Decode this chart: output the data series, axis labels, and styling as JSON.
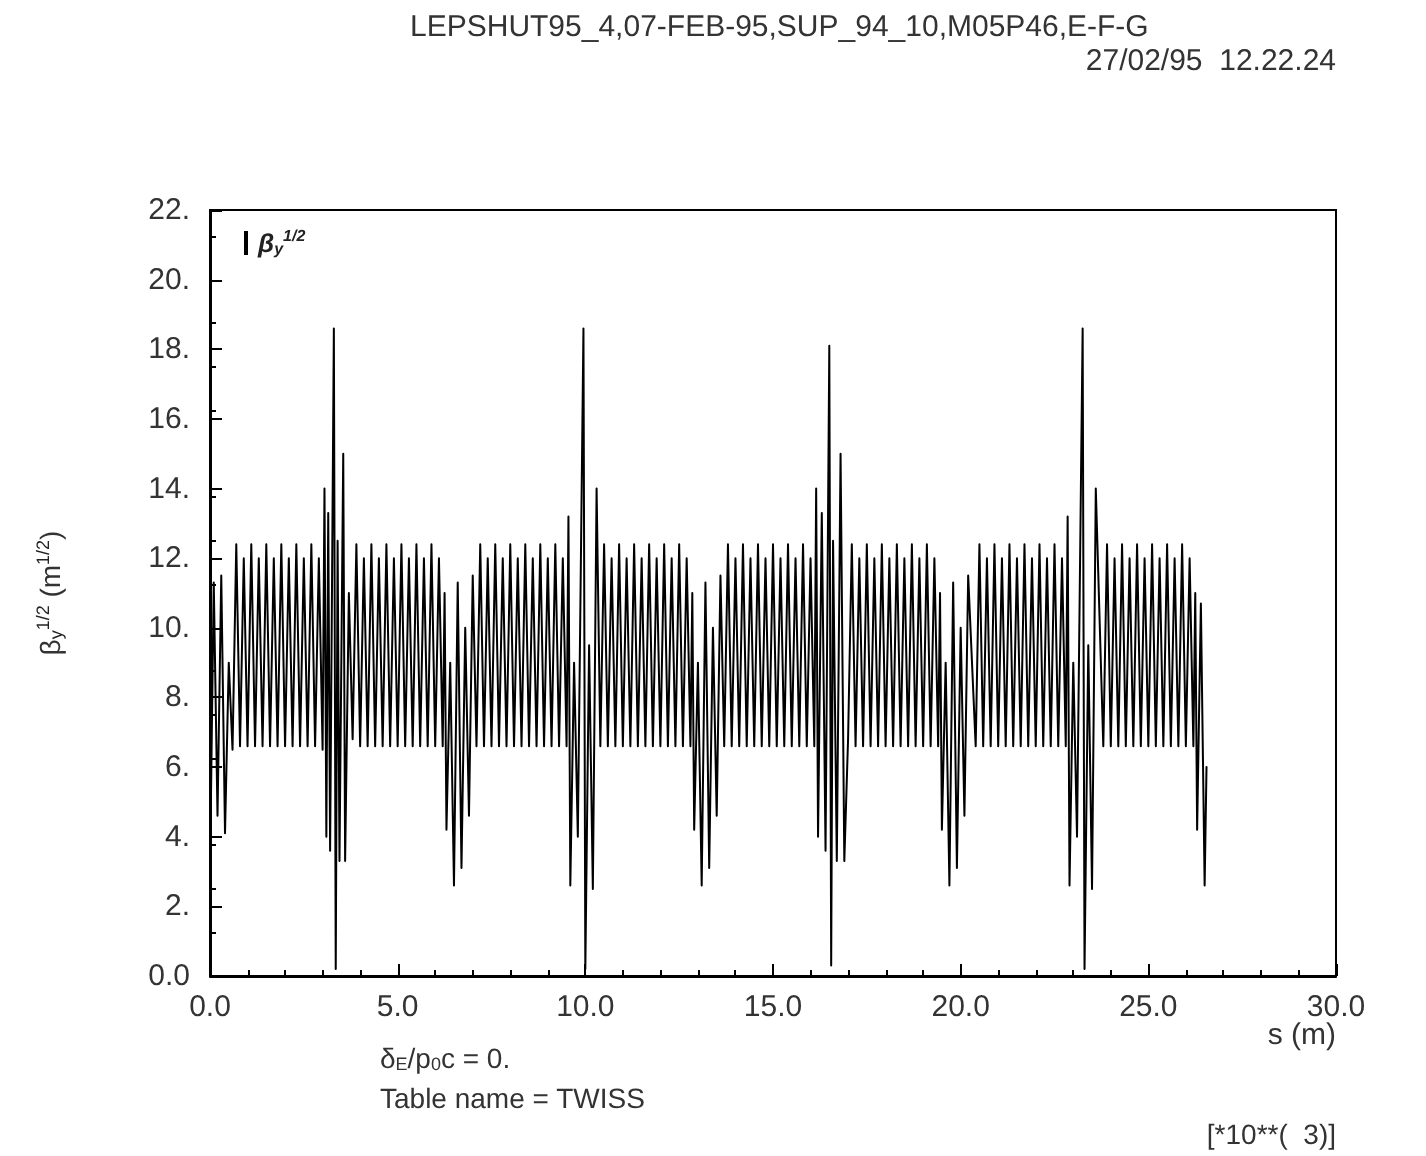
{
  "chart_data": {
    "type": "line",
    "title": "LEPSHUT95_4,07-FEB-95,SUP_94_10,M05P46,E-F-G",
    "subtitle": "27/02/95  12.22.24",
    "xlabel": "s (m)",
    "ylabel": "β$_{y}$$^{1/2}$ (m$^{1/2}$)",
    "annotations": [
      "δ$_{E}$/p$_{0}$c = 0.",
      "Table name = TWISS",
      "[*10**(  3)]"
    ],
    "x": [
      0,
      0.1,
      0.2,
      0.3,
      0.4,
      0.5,
      0.6,
      0.7,
      0.8,
      0.9,
      1.0,
      1.1,
      1.2,
      1.3,
      1.4,
      1.5,
      1.6,
      1.7,
      1.8,
      1.9,
      2.0,
      2.1,
      2.2,
      2.3,
      2.4,
      2.5,
      2.6,
      2.7,
      2.8,
      2.9,
      3.0,
      3.05,
      3.1,
      3.15,
      3.2,
      3.3,
      3.35,
      3.4,
      3.45,
      3.55,
      3.6,
      3.7,
      3.8,
      3.9,
      4.0,
      4.1,
      4.2,
      4.3,
      4.4,
      4.5,
      4.6,
      4.7,
      4.8,
      4.9,
      5.0,
      5.1,
      5.2,
      5.3,
      5.4,
      5.5,
      5.6,
      5.7,
      5.8,
      5.9,
      6.0,
      6.1,
      6.2,
      6.25,
      6.3,
      6.4,
      6.5,
      6.6,
      6.7,
      6.8,
      6.9,
      7.0,
      7.1,
      7.2,
      7.3,
      7.4,
      7.5,
      7.6,
      7.7,
      7.8,
      7.9,
      8.0,
      8.1,
      8.2,
      8.3,
      8.4,
      8.5,
      8.6,
      8.7,
      8.8,
      8.9,
      9.0,
      9.1,
      9.2,
      9.3,
      9.4,
      9.5,
      9.55,
      9.6,
      9.7,
      9.8,
      9.95,
      10.0,
      10.1,
      10.2,
      10.3,
      10.4,
      10.5,
      10.6,
      10.7,
      10.8,
      10.9,
      11.0,
      11.1,
      11.2,
      11.3,
      11.4,
      11.5,
      11.6,
      11.7,
      11.8,
      11.9,
      12.0,
      12.1,
      12.2,
      12.3,
      12.4,
      12.5,
      12.6,
      12.7,
      12.8,
      12.85,
      12.9,
      13.0,
      13.1,
      13.2,
      13.3,
      13.4,
      13.5,
      13.6,
      13.7,
      13.8,
      13.9,
      14.0,
      14.1,
      14.2,
      14.3,
      14.4,
      14.5,
      14.6,
      14.7,
      14.8,
      14.9,
      15.0,
      15.1,
      15.2,
      15.3,
      15.4,
      15.5,
      15.6,
      15.7,
      15.8,
      15.9,
      16.0,
      16.1,
      16.15,
      16.2,
      16.3,
      16.4,
      16.5,
      16.55,
      16.6,
      16.7,
      16.8,
      16.9,
      17.0,
      17.1,
      17.2,
      17.3,
      17.4,
      17.5,
      17.6,
      17.7,
      17.8,
      17.9,
      18.0,
      18.1,
      18.2,
      18.3,
      18.4,
      18.5,
      18.6,
      18.7,
      18.8,
      18.9,
      19.0,
      19.1,
      19.2,
      19.3,
      19.4,
      19.45,
      19.5,
      19.6,
      19.7,
      19.8,
      19.9,
      20.0,
      20.1,
      20.2,
      20.4,
      20.5,
      20.6,
      20.7,
      20.8,
      20.9,
      21.0,
      21.1,
      21.2,
      21.3,
      21.4,
      21.5,
      21.6,
      21.7,
      21.8,
      21.9,
      22.0,
      22.1,
      22.2,
      22.3,
      22.4,
      22.5,
      22.6,
      22.7,
      22.8,
      22.85,
      22.9,
      23.0,
      23.1,
      23.25,
      23.3,
      23.4,
      23.5,
      23.6,
      23.8,
      23.9,
      24.0,
      24.1,
      24.2,
      24.3,
      24.4,
      24.5,
      24.6,
      24.7,
      24.8,
      24.9,
      25.0,
      25.1,
      25.2,
      25.3,
      25.4,
      25.5,
      25.6,
      25.7,
      25.8,
      25.9,
      26.0,
      26.1,
      26.2,
      26.25,
      26.3,
      26.4,
      26.5,
      26.55
    ],
    "series": [
      {
        "name": "β$_{y}$$^{1/2}$",
        "color": "#000000",
        "values": [
          3.0,
          11.3,
          4.6,
          11.5,
          4.1,
          9.0,
          6.5,
          12.4,
          6.6,
          12.0,
          6.6,
          12.4,
          6.6,
          12.0,
          6.6,
          12.4,
          6.6,
          12.0,
          6.6,
          12.4,
          6.6,
          12.0,
          6.6,
          12.4,
          6.6,
          12.0,
          6.6,
          12.4,
          6.6,
          12.0,
          6.5,
          14.0,
          4.0,
          13.3,
          3.6,
          18.6,
          0.2,
          12.5,
          3.3,
          15.0,
          3.3,
          11.0,
          6.8,
          12.4,
          6.6,
          12.0,
          6.6,
          12.4,
          6.6,
          12.0,
          6.6,
          12.4,
          6.6,
          12.0,
          6.6,
          12.4,
          6.6,
          12.0,
          6.6,
          12.4,
          6.6,
          12.0,
          6.6,
          12.4,
          6.6,
          12.0,
          6.6,
          11.0,
          4.2,
          9.0,
          2.6,
          11.3,
          3.1,
          10.0,
          4.6,
          11.5,
          6.6,
          12.4,
          6.6,
          12.0,
          6.6,
          12.4,
          6.6,
          12.0,
          6.6,
          12.4,
          6.6,
          12.0,
          6.6,
          12.4,
          6.6,
          12.0,
          6.6,
          12.4,
          6.6,
          12.0,
          6.6,
          12.4,
          6.6,
          12.0,
          6.6,
          13.2,
          2.6,
          9.0,
          4.0,
          18.6,
          0.2,
          9.5,
          2.5,
          14.0,
          6.6,
          12.4,
          6.6,
          12.0,
          6.6,
          12.4,
          6.6,
          12.0,
          6.6,
          12.4,
          6.6,
          12.0,
          6.6,
          12.4,
          6.6,
          12.0,
          6.6,
          12.4,
          6.6,
          12.0,
          6.6,
          12.4,
          6.6,
          12.0,
          6.6,
          11.0,
          4.2,
          9.0,
          2.6,
          11.3,
          3.1,
          10.0,
          4.6,
          11.5,
          6.6,
          12.4,
          6.6,
          12.0,
          6.6,
          12.4,
          6.6,
          12.0,
          6.6,
          12.4,
          6.6,
          12.0,
          6.6,
          12.4,
          6.6,
          12.0,
          6.6,
          12.4,
          6.6,
          12.0,
          6.6,
          12.4,
          6.6,
          12.0,
          6.6,
          14.0,
          4.0,
          13.3,
          3.6,
          18.1,
          0.3,
          12.5,
          3.3,
          15.0,
          3.3,
          6.8,
          12.4,
          6.6,
          12.0,
          6.6,
          12.4,
          6.6,
          12.0,
          6.6,
          12.4,
          6.6,
          12.0,
          6.6,
          12.4,
          6.6,
          12.0,
          6.6,
          12.4,
          6.6,
          12.0,
          6.6,
          12.4,
          6.6,
          12.0,
          6.6,
          11.0,
          4.2,
          9.0,
          2.6,
          11.3,
          3.1,
          10.0,
          4.6,
          11.5,
          6.6,
          12.4,
          6.6,
          12.0,
          6.6,
          12.4,
          6.6,
          12.0,
          6.6,
          12.4,
          6.6,
          12.0,
          6.6,
          12.4,
          6.6,
          12.0,
          6.6,
          12.4,
          6.6,
          12.0,
          6.6,
          12.4,
          6.6,
          12.0,
          6.6,
          13.2,
          2.6,
          9.0,
          4.0,
          18.6,
          0.2,
          9.5,
          2.5,
          14.0,
          6.6,
          12.4,
          6.6,
          12.0,
          6.6,
          12.4,
          6.6,
          12.0,
          6.6,
          12.4,
          6.6,
          12.0,
          6.6,
          12.4,
          6.6,
          12.0,
          6.6,
          12.4,
          6.6,
          12.0,
          6.6,
          12.4,
          6.6,
          12.0,
          6.6,
          11.0,
          4.2,
          10.7,
          2.6,
          6.0
        ]
      }
    ],
    "xlim": [
      0,
      30
    ],
    "xticks": [
      {
        "value": 0,
        "label": "0.0"
      },
      {
        "value": 5,
        "label": "5.0"
      },
      {
        "value": 10,
        "label": "10.0"
      },
      {
        "value": 15,
        "label": "15.0"
      },
      {
        "value": 20,
        "label": "20.0"
      },
      {
        "value": 25,
        "label": "25.0"
      },
      {
        "value": 30,
        "label": "30.0"
      }
    ],
    "ylim": [
      0,
      22
    ],
    "yticks": [
      {
        "value": 0,
        "label": "0.0"
      },
      {
        "value": 2,
        "label": "2."
      },
      {
        "value": 4,
        "label": "4."
      },
      {
        "value": 6,
        "label": "6."
      },
      {
        "value": 8,
        "label": "8."
      },
      {
        "value": 10,
        "label": "10."
      },
      {
        "value": 12,
        "label": "12."
      },
      {
        "value": 14,
        "label": "14."
      },
      {
        "value": 16,
        "label": "16."
      },
      {
        "value": 18,
        "label": "18."
      },
      {
        "value": 20,
        "label": "20."
      },
      {
        "value": 22,
        "label": "22."
      }
    ],
    "legend": "top left",
    "marker": "none",
    "line_style": "solid"
  }
}
